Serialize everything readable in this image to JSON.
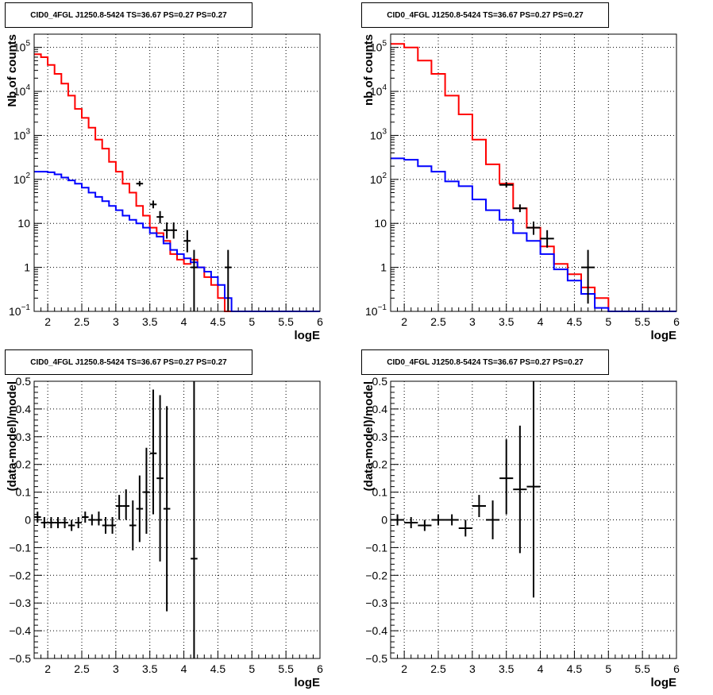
{
  "chart_data": [
    {
      "type": "step",
      "title": "CID0_4FGL J1250.8-5424 TS=36.67 PS=0.27 PS=0.27",
      "xlabel": "logE",
      "ylabel": "Nb of counts",
      "xlim": [
        1.8,
        6.0
      ],
      "ylim": [
        0.1,
        200000
      ],
      "yscale": "log",
      "grid": true,
      "xticks": [
        "2",
        "2.5",
        "3",
        "3.5",
        "4",
        "4.5",
        "5",
        "5.5",
        "6"
      ],
      "yticks": [
        {
          "v": 0.1,
          "base": "10",
          "exp": "−1"
        },
        {
          "v": 1,
          "base": "1",
          "exp": ""
        },
        {
          "v": 10,
          "base": "10",
          "exp": ""
        },
        {
          "v": 100,
          "base": "10",
          "exp": "2"
        },
        {
          "v": 1000,
          "base": "10",
          "exp": "3"
        },
        {
          "v": 10000,
          "base": "10",
          "exp": "4"
        },
        {
          "v": 100000,
          "base": "10",
          "exp": "5"
        }
      ],
      "series": [
        {
          "color": "#ff0000",
          "style": "step",
          "edges": [
            1.8,
            1.9,
            2.0,
            2.1,
            2.2,
            2.3,
            2.4,
            2.5,
            2.6,
            2.7,
            2.8,
            2.9,
            3.0,
            3.1,
            3.2,
            3.3,
            3.4,
            3.5,
            3.6,
            3.7,
            3.8,
            3.9,
            4.0,
            4.1,
            4.2,
            4.3,
            4.4,
            4.5,
            4.6,
            4.7,
            4.8,
            4.9,
            5.0,
            5.1,
            5.2,
            5.3,
            5.4,
            5.5,
            5.6,
            5.7,
            5.8,
            5.9,
            6.0
          ],
          "values": [
            70000,
            60000,
            40000,
            25000,
            15000,
            8000,
            4000,
            2500,
            1500,
            800,
            500,
            250,
            150,
            80,
            50,
            25,
            15,
            8,
            6,
            4,
            2,
            1.5,
            1.2,
            1.5,
            1.0,
            0.6,
            0.4,
            0.2,
            0.1,
            0.1,
            0.1,
            0.1,
            0.1,
            0.1,
            0.1,
            0.1,
            0.1,
            0.1,
            0.1,
            0.1,
            0.1,
            0.1
          ]
        },
        {
          "color": "#0000ff",
          "style": "step",
          "edges": [
            1.8,
            1.9,
            2.0,
            2.1,
            2.2,
            2.3,
            2.4,
            2.5,
            2.6,
            2.7,
            2.8,
            2.9,
            3.0,
            3.1,
            3.2,
            3.3,
            3.4,
            3.5,
            3.6,
            3.7,
            3.8,
            3.9,
            4.0,
            4.1,
            4.2,
            4.3,
            4.4,
            4.5,
            4.6,
            4.7,
            4.8,
            4.9,
            5.0,
            5.1,
            5.2,
            5.3,
            5.4,
            5.5,
            5.6,
            5.7,
            5.8,
            5.9,
            6.0
          ],
          "values": [
            150,
            150,
            145,
            130,
            110,
            95,
            80,
            65,
            50,
            40,
            32,
            25,
            20,
            15,
            12,
            10,
            8,
            6,
            5,
            3.5,
            2.5,
            2.0,
            1.6,
            1.3,
            1.0,
            0.8,
            0.6,
            0.4,
            0.2,
            0.1,
            0.1,
            0.1,
            0.1,
            0.1,
            0.1,
            0.1,
            0.1,
            0.1,
            0.1,
            0.1,
            0.1,
            0.1
          ]
        },
        {
          "color": "#000000",
          "style": "errorbar",
          "points": [
            {
              "x": 3.35,
              "y": 80,
              "xerr": 0.05,
              "ylo": 70,
              "yhi": 92
            },
            {
              "x": 3.55,
              "y": 27,
              "xerr": 0.05,
              "ylo": 22,
              "yhi": 33
            },
            {
              "x": 3.65,
              "y": 14,
              "xerr": 0.05,
              "ylo": 10,
              "yhi": 19
            },
            {
              "x": 3.75,
              "y": 7,
              "xerr": 0.05,
              "ylo": 4.5,
              "yhi": 10.5
            },
            {
              "x": 3.85,
              "y": 7,
              "xerr": 0.05,
              "ylo": 4.5,
              "yhi": 10.5
            },
            {
              "x": 4.05,
              "y": 4,
              "xerr": 0.05,
              "ylo": 2.2,
              "yhi": 7
            },
            {
              "x": 4.15,
              "y": 1,
              "xerr": 0.05,
              "ylo": 0.1,
              "yhi": 2.5
            },
            {
              "x": 4.65,
              "y": 1,
              "xerr": 0.05,
              "ylo": 0.1,
              "yhi": 2.5
            }
          ]
        }
      ]
    },
    {
      "type": "step",
      "title": "CID0_4FGL J1250.8-5424 TS=36.67 PS=0.27 PS=0.27",
      "xlabel": "logE",
      "ylabel": "nb of counts",
      "xlim": [
        1.8,
        6.0
      ],
      "ylim": [
        0.1,
        200000
      ],
      "yscale": "log",
      "grid": true,
      "xticks": [
        "2",
        "2.5",
        "3",
        "3.5",
        "4",
        "4.5",
        "5",
        "5.5",
        "6"
      ],
      "yticks": [
        {
          "v": 0.1,
          "base": "10",
          "exp": "−1"
        },
        {
          "v": 1,
          "base": "1",
          "exp": ""
        },
        {
          "v": 10,
          "base": "10",
          "exp": ""
        },
        {
          "v": 100,
          "base": "10",
          "exp": "2"
        },
        {
          "v": 1000,
          "base": "10",
          "exp": "3"
        },
        {
          "v": 10000,
          "base": "10",
          "exp": "4"
        },
        {
          "v": 100000,
          "base": "10",
          "exp": "5"
        }
      ],
      "series": [
        {
          "color": "#ff0000",
          "style": "step",
          "edges": [
            1.8,
            2.0,
            2.2,
            2.4,
            2.6,
            2.8,
            3.0,
            3.2,
            3.4,
            3.6,
            3.8,
            4.0,
            4.2,
            4.4,
            4.6,
            4.8,
            5.0,
            5.2,
            5.4,
            5.6,
            5.8,
            6.0
          ],
          "values": [
            120000,
            100000,
            50000,
            25000,
            8000,
            3000,
            800,
            220,
            80,
            22,
            8,
            3,
            1.2,
            0.7,
            0.35,
            0.2,
            0.1,
            0.1,
            0.1,
            0.1,
            0.1
          ]
        },
        {
          "color": "#0000ff",
          "style": "step",
          "edges": [
            1.8,
            2.0,
            2.2,
            2.4,
            2.6,
            2.8,
            3.0,
            3.2,
            3.4,
            3.6,
            3.8,
            4.0,
            4.2,
            4.4,
            4.6,
            4.8,
            5.0,
            5.2,
            5.4,
            5.6,
            5.8,
            6.0
          ],
          "values": [
            300,
            280,
            200,
            150,
            90,
            70,
            35,
            20,
            12,
            6,
            4,
            2,
            0.9,
            0.5,
            0.25,
            0.12,
            0.1,
            0.1,
            0.1,
            0.1,
            0.1
          ]
        },
        {
          "color": "#000000",
          "style": "errorbar",
          "points": [
            {
              "x": 3.5,
              "y": 75,
              "xerr": 0.1,
              "ylo": 65,
              "yhi": 87
            },
            {
              "x": 3.7,
              "y": 22,
              "xerr": 0.1,
              "ylo": 18,
              "yhi": 27
            },
            {
              "x": 3.9,
              "y": 8,
              "xerr": 0.1,
              "ylo": 5.5,
              "yhi": 11
            },
            {
              "x": 4.1,
              "y": 4.5,
              "xerr": 0.1,
              "ylo": 2.8,
              "yhi": 7
            },
            {
              "x": 4.7,
              "y": 1,
              "xerr": 0.1,
              "ylo": 0.15,
              "yhi": 2.5
            }
          ]
        }
      ]
    },
    {
      "type": "errorbar",
      "title": "CID0_4FGL J1250.8-5424 TS=36.67 PS=0.27 PS=0.27",
      "xlabel": "logE",
      "ylabel": "(data-model)/model",
      "xlim": [
        1.8,
        6.0
      ],
      "ylim": [
        -0.5,
        0.5
      ],
      "yscale": "linear",
      "grid": true,
      "xticks": [
        "2",
        "2.5",
        "3",
        "3.5",
        "4",
        "4.5",
        "5",
        "5.5",
        "6"
      ],
      "yticks": [
        "−0.5",
        "−0.4",
        "−0.3",
        "−0.2",
        "−0.1",
        "0",
        "0.1",
        "0.2",
        "0.3",
        "0.4",
        "0.5"
      ],
      "series": [
        {
          "color": "#000000",
          "style": "errorbar",
          "points": [
            {
              "x": 1.85,
              "y": 0.01,
              "xerr": 0.05,
              "ylo": -0.01,
              "yhi": 0.03
            },
            {
              "x": 1.95,
              "y": -0.01,
              "xerr": 0.05,
              "ylo": -0.03,
              "yhi": 0.01
            },
            {
              "x": 2.05,
              "y": -0.01,
              "xerr": 0.05,
              "ylo": -0.03,
              "yhi": 0.01
            },
            {
              "x": 2.15,
              "y": -0.01,
              "xerr": 0.05,
              "ylo": -0.03,
              "yhi": 0.01
            },
            {
              "x": 2.25,
              "y": -0.01,
              "xerr": 0.05,
              "ylo": -0.03,
              "yhi": 0.01
            },
            {
              "x": 2.35,
              "y": -0.02,
              "xerr": 0.05,
              "ylo": -0.04,
              "yhi": 0.0
            },
            {
              "x": 2.45,
              "y": -0.01,
              "xerr": 0.05,
              "ylo": -0.03,
              "yhi": 0.01
            },
            {
              "x": 2.55,
              "y": 0.01,
              "xerr": 0.05,
              "ylo": -0.01,
              "yhi": 0.03
            },
            {
              "x": 2.65,
              "y": 0.0,
              "xerr": 0.05,
              "ylo": -0.02,
              "yhi": 0.02
            },
            {
              "x": 2.75,
              "y": 0.0,
              "xerr": 0.05,
              "ylo": -0.02,
              "yhi": 0.03
            },
            {
              "x": 2.85,
              "y": -0.02,
              "xerr": 0.05,
              "ylo": -0.05,
              "yhi": 0.01
            },
            {
              "x": 2.95,
              "y": -0.02,
              "xerr": 0.05,
              "ylo": -0.05,
              "yhi": 0.01
            },
            {
              "x": 3.05,
              "y": 0.05,
              "xerr": 0.05,
              "ylo": 0.0,
              "yhi": 0.09
            },
            {
              "x": 3.15,
              "y": 0.05,
              "xerr": 0.05,
              "ylo": 0.0,
              "yhi": 0.11
            },
            {
              "x": 3.25,
              "y": -0.02,
              "xerr": 0.05,
              "ylo": -0.11,
              "yhi": 0.07
            },
            {
              "x": 3.35,
              "y": 0.04,
              "xerr": 0.05,
              "ylo": -0.08,
              "yhi": 0.16
            },
            {
              "x": 3.45,
              "y": 0.1,
              "xerr": 0.05,
              "ylo": -0.05,
              "yhi": 0.26
            },
            {
              "x": 3.55,
              "y": 0.24,
              "xerr": 0.05,
              "ylo": 0.02,
              "yhi": 0.47
            },
            {
              "x": 3.65,
              "y": 0.15,
              "xerr": 0.05,
              "ylo": -0.15,
              "yhi": 0.45
            },
            {
              "x": 3.75,
              "y": 0.04,
              "xerr": 0.05,
              "ylo": -0.33,
              "yhi": 0.41
            },
            {
              "x": 4.15,
              "y": -0.14,
              "xerr": 0.05,
              "ylo": -0.5,
              "yhi": 0.5
            }
          ]
        }
      ]
    },
    {
      "type": "errorbar",
      "title": "CID0_4FGL J1250.8-5424 TS=36.67 PS=0.27 PS=0.27",
      "xlabel": "logE",
      "ylabel": "(data-model)/model",
      "xlim": [
        1.8,
        6.0
      ],
      "ylim": [
        -0.5,
        0.5
      ],
      "yscale": "linear",
      "grid": true,
      "xticks": [
        "2",
        "2.5",
        "3",
        "3.5",
        "4",
        "4.5",
        "5",
        "5.5",
        "6"
      ],
      "yticks": [
        "−0.5",
        "−0.4",
        "−0.3",
        "−0.2",
        "−0.1",
        "0",
        "0.1",
        "0.2",
        "0.3",
        "0.4",
        "0.5"
      ],
      "series": [
        {
          "color": "#000000",
          "style": "errorbar",
          "points": [
            {
              "x": 1.9,
              "y": 0.0,
              "xerr": 0.1,
              "ylo": -0.02,
              "yhi": 0.02
            },
            {
              "x": 2.1,
              "y": -0.01,
              "xerr": 0.1,
              "ylo": -0.03,
              "yhi": 0.01
            },
            {
              "x": 2.3,
              "y": -0.02,
              "xerr": 0.1,
              "ylo": -0.04,
              "yhi": 0.0
            },
            {
              "x": 2.5,
              "y": 0.0,
              "xerr": 0.1,
              "ylo": -0.02,
              "yhi": 0.02
            },
            {
              "x": 2.7,
              "y": 0.0,
              "xerr": 0.1,
              "ylo": -0.02,
              "yhi": 0.02
            },
            {
              "x": 2.9,
              "y": -0.03,
              "xerr": 0.1,
              "ylo": -0.06,
              "yhi": 0.0
            },
            {
              "x": 3.1,
              "y": 0.05,
              "xerr": 0.1,
              "ylo": 0.01,
              "yhi": 0.09
            },
            {
              "x": 3.3,
              "y": 0.0,
              "xerr": 0.1,
              "ylo": -0.07,
              "yhi": 0.07
            },
            {
              "x": 3.5,
              "y": 0.15,
              "xerr": 0.1,
              "ylo": 0.02,
              "yhi": 0.29
            },
            {
              "x": 3.7,
              "y": 0.11,
              "xerr": 0.1,
              "ylo": -0.12,
              "yhi": 0.34
            },
            {
              "x": 3.9,
              "y": 0.12,
              "xerr": 0.1,
              "ylo": -0.28,
              "yhi": 0.5
            }
          ]
        }
      ]
    }
  ]
}
